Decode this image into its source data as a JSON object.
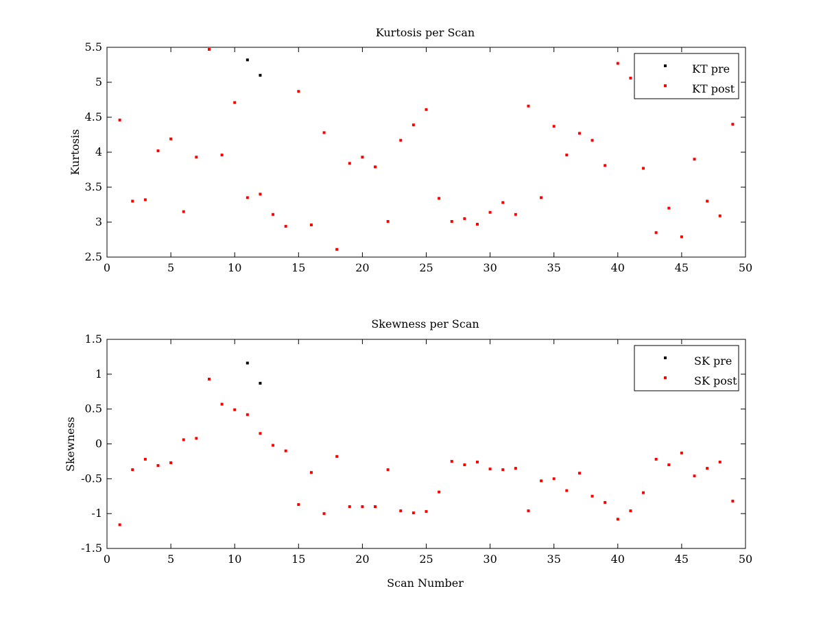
{
  "chart_data": [
    {
      "type": "scatter",
      "title": "Kurtosis per Scan",
      "xlabel": "",
      "ylabel": "Kurtosis",
      "xlim": [
        0,
        50
      ],
      "ylim": [
        2.5,
        5.5
      ],
      "xticks": [
        0,
        5,
        10,
        15,
        20,
        25,
        30,
        35,
        40,
        45,
        50
      ],
      "yticks": [
        2.5,
        3,
        3.5,
        4,
        4.5,
        5,
        5.5
      ],
      "xtick_labels": [
        "0",
        "5",
        "10",
        "15",
        "20",
        "25",
        "30",
        "35",
        "40",
        "45",
        "50"
      ],
      "ytick_labels": [
        "2.5",
        "3",
        "3.5",
        "4",
        "4.5",
        "5",
        "5.5"
      ],
      "grid": false,
      "legend_position": "top-right",
      "series": [
        {
          "name": "KT pre",
          "color": "#000000",
          "x": [
            11,
            12
          ],
          "y": [
            5.32,
            5.1
          ]
        },
        {
          "name": "KT post",
          "color": "#ff0000",
          "x": [
            1,
            2,
            3,
            4,
            5,
            6,
            7,
            8,
            9,
            10,
            11,
            12,
            13,
            14,
            15,
            16,
            17,
            18,
            19,
            20,
            21,
            22,
            23,
            24,
            25,
            26,
            27,
            28,
            29,
            30,
            31,
            32,
            33,
            34,
            35,
            36,
            37,
            38,
            39,
            40,
            41,
            42,
            43,
            44,
            45,
            46,
            47,
            48,
            49
          ],
          "y": [
            4.46,
            3.3,
            3.32,
            4.02,
            4.19,
            3.15,
            3.93,
            5.47,
            3.96,
            4.71,
            3.35,
            3.4,
            3.11,
            2.94,
            4.87,
            2.96,
            4.28,
            2.61,
            3.84,
            3.93,
            3.79,
            3.01,
            4.17,
            4.39,
            4.61,
            3.34,
            3.01,
            3.05,
            2.97,
            3.14,
            3.28,
            3.11,
            4.66,
            3.35,
            4.37,
            3.96,
            4.27,
            4.17,
            3.81,
            5.27,
            5.06,
            3.77,
            2.85,
            3.2,
            2.79,
            3.9,
            3.3,
            3.09,
            4.4
          ]
        }
      ]
    },
    {
      "type": "scatter",
      "title": "Skewness per Scan",
      "xlabel": "Scan Number",
      "ylabel": "Skewness",
      "xlim": [
        0,
        50
      ],
      "ylim": [
        -1.5,
        1.5
      ],
      "xticks": [
        0,
        5,
        10,
        15,
        20,
        25,
        30,
        35,
        40,
        45,
        50
      ],
      "yticks": [
        -1.5,
        -1,
        -0.5,
        0,
        0.5,
        1,
        1.5
      ],
      "xtick_labels": [
        "0",
        "5",
        "10",
        "15",
        "20",
        "25",
        "30",
        "35",
        "40",
        "45",
        "50"
      ],
      "ytick_labels": [
        "-1.5",
        "-1",
        "-0.5",
        "0",
        "0.5",
        "1",
        "1.5"
      ],
      "grid": false,
      "legend_position": "top-right",
      "series": [
        {
          "name": "SK pre",
          "color": "#000000",
          "x": [
            11,
            12
          ],
          "y": [
            1.16,
            0.87
          ]
        },
        {
          "name": "SK post",
          "color": "#ff0000",
          "x": [
            1,
            2,
            3,
            4,
            5,
            6,
            7,
            8,
            9,
            10,
            11,
            12,
            13,
            14,
            15,
            16,
            17,
            18,
            19,
            20,
            21,
            22,
            23,
            24,
            25,
            26,
            27,
            28,
            29,
            30,
            31,
            32,
            33,
            34,
            35,
            36,
            37,
            38,
            39,
            40,
            41,
            42,
            43,
            44,
            45,
            46,
            47,
            48,
            49
          ],
          "y": [
            -1.16,
            -0.37,
            -0.22,
            -0.31,
            -0.27,
            0.06,
            0.08,
            0.93,
            0.57,
            0.49,
            0.42,
            0.15,
            -0.02,
            -0.1,
            -0.87,
            -0.41,
            -1.0,
            -0.18,
            -0.9,
            -0.9,
            -0.9,
            -0.37,
            -0.96,
            -0.99,
            -0.97,
            -0.69,
            -0.25,
            -0.3,
            -0.26,
            -0.36,
            -0.37,
            -0.35,
            -0.96,
            -0.53,
            -0.5,
            -0.67,
            -0.42,
            -0.75,
            -0.84,
            -1.08,
            -0.96,
            -0.7,
            -0.22,
            -0.3,
            -0.13,
            -0.46,
            -0.35,
            -0.26,
            -0.82
          ]
        }
      ]
    }
  ]
}
